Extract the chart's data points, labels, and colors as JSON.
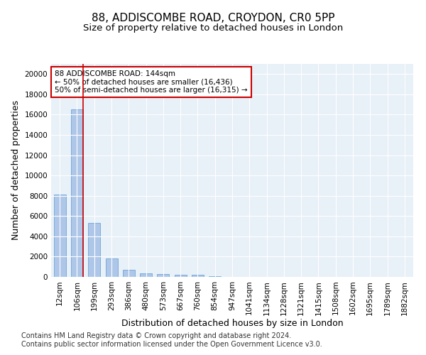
{
  "title1": "88, ADDISCOMBE ROAD, CROYDON, CR0 5PP",
  "title2": "Size of property relative to detached houses in London",
  "xlabel": "Distribution of detached houses by size in London",
  "ylabel": "Number of detached properties",
  "categories": [
    "12sqm",
    "106sqm",
    "199sqm",
    "293sqm",
    "386sqm",
    "480sqm",
    "573sqm",
    "667sqm",
    "760sqm",
    "854sqm",
    "947sqm",
    "1041sqm",
    "1134sqm",
    "1228sqm",
    "1321sqm",
    "1415sqm",
    "1508sqm",
    "1602sqm",
    "1695sqm",
    "1789sqm",
    "1882sqm"
  ],
  "values": [
    8100,
    16500,
    5300,
    1850,
    700,
    350,
    270,
    220,
    180,
    100,
    0,
    0,
    0,
    0,
    0,
    0,
    0,
    0,
    0,
    0,
    0
  ],
  "bar_color": "#aec6e8",
  "bar_edge_color": "#5b9bd5",
  "vline_color": "#cc0000",
  "annotation_text": "88 ADDISCOMBE ROAD: 144sqm\n← 50% of detached houses are smaller (16,436)\n50% of semi-detached houses are larger (16,315) →",
  "annotation_box_color": "#ffffff",
  "annotation_box_edge": "#cc0000",
  "ylim": [
    0,
    21000
  ],
  "yticks": [
    0,
    2000,
    4000,
    6000,
    8000,
    10000,
    12000,
    14000,
    16000,
    18000,
    20000
  ],
  "bg_color": "#e8f0f8",
  "footer1": "Contains HM Land Registry data © Crown copyright and database right 2024.",
  "footer2": "Contains public sector information licensed under the Open Government Licence v3.0.",
  "title1_fontsize": 11,
  "title2_fontsize": 9.5,
  "xlabel_fontsize": 9,
  "ylabel_fontsize": 9,
  "tick_fontsize": 7.5,
  "footer_fontsize": 7,
  "ann_fontsize": 7.5
}
